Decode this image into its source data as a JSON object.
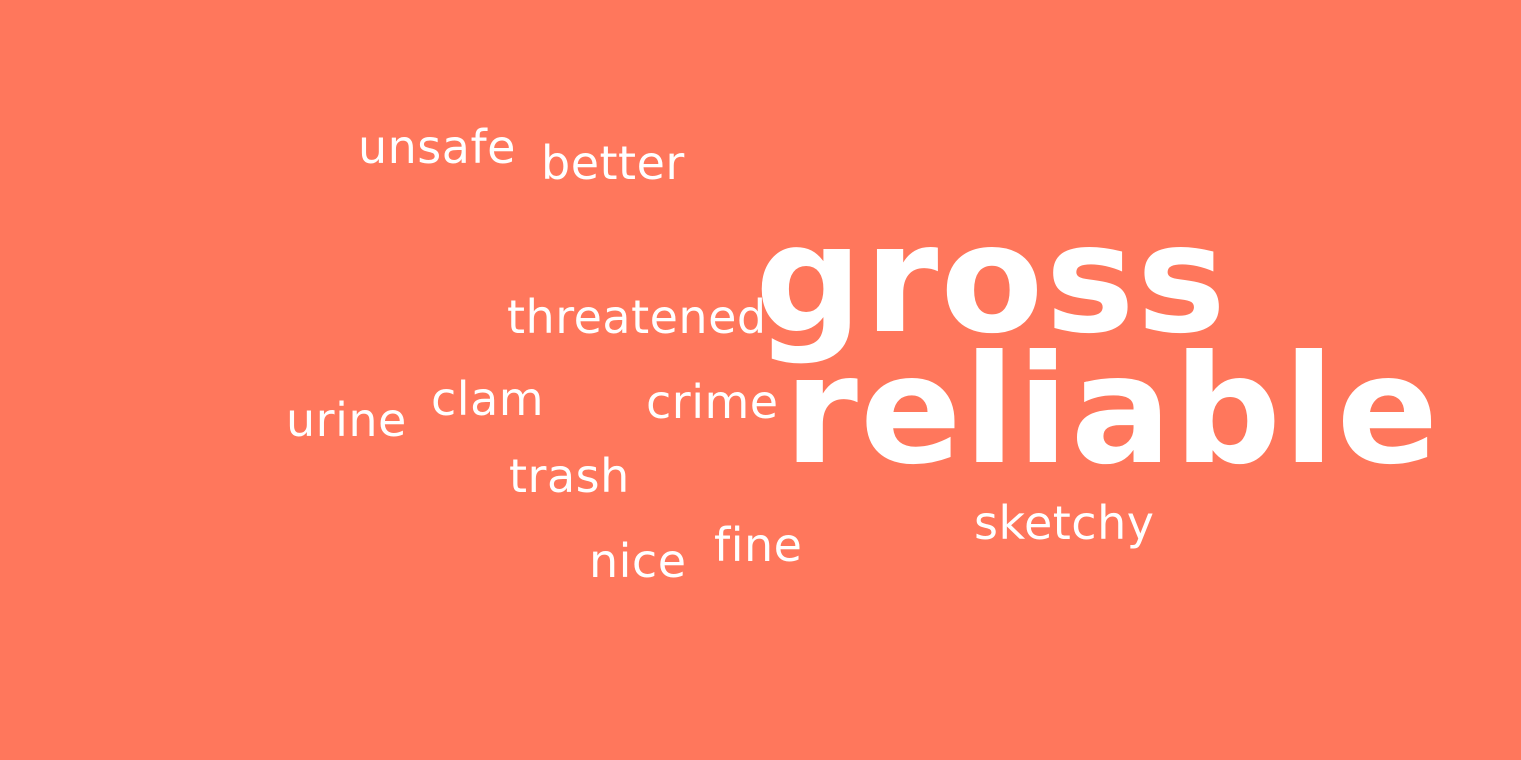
{
  "colors": {
    "background": "#ff775c",
    "text": "#ffffff"
  },
  "words": {
    "unsafe": "unsafe",
    "better": "better",
    "gross": "gross",
    "threatened": "threatened",
    "urine": "urine",
    "clam": "clam",
    "crime": "crime",
    "reliable": "reliable",
    "trash": "trash",
    "sketchy": "sketchy",
    "fine": "fine",
    "nice": "nice"
  }
}
